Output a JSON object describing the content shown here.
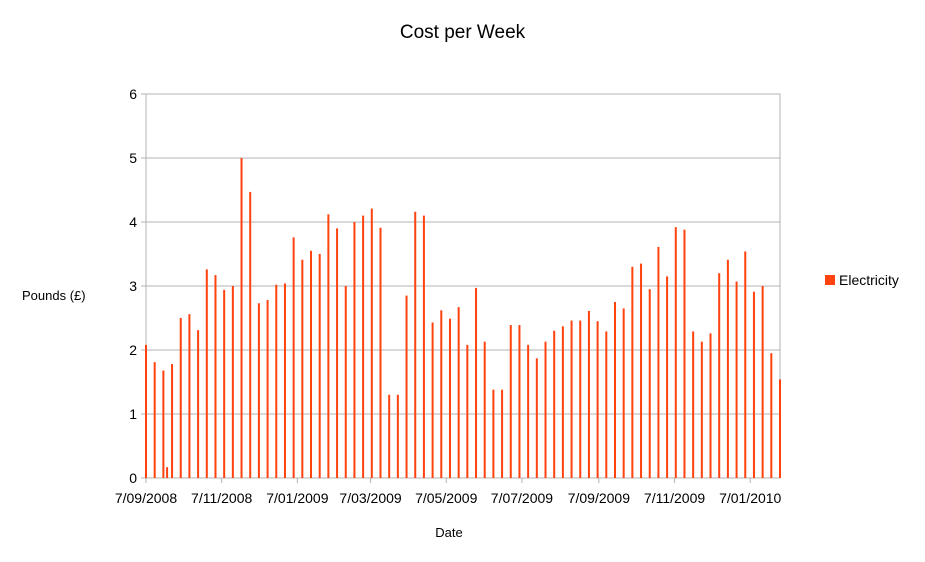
{
  "chart_data": {
    "type": "bar",
    "title": "Cost per Week",
    "xlabel": "Date",
    "ylabel": "Pounds (£)",
    "ylim": [
      0,
      6
    ],
    "yticks": [
      "0",
      "1",
      "2",
      "3",
      "4",
      "5",
      "6"
    ],
    "grid": true,
    "legend_position": "right",
    "color": "#ff420e",
    "series": [
      {
        "name": "Electricity",
        "x": [
          "2008-09-07",
          "2008-09-14",
          "2008-09-21",
          "2008-09-24",
          "2008-09-28",
          "2008-10-05",
          "2008-10-12",
          "2008-10-19",
          "2008-10-26",
          "2008-11-02",
          "2008-11-09",
          "2008-11-16",
          "2008-11-23",
          "2008-11-30",
          "2008-12-07",
          "2008-12-14",
          "2008-12-21",
          "2008-12-28",
          "2009-01-04",
          "2009-01-11",
          "2009-01-18",
          "2009-01-25",
          "2009-02-01",
          "2009-02-08",
          "2009-02-15",
          "2009-02-22",
          "2009-03-01",
          "2009-03-08",
          "2009-03-15",
          "2009-03-22",
          "2009-03-29",
          "2009-04-05",
          "2009-04-12",
          "2009-04-19",
          "2009-04-26",
          "2009-05-03",
          "2009-05-10",
          "2009-05-17",
          "2009-05-24",
          "2009-05-31",
          "2009-06-07",
          "2009-06-14",
          "2009-06-21",
          "2009-06-28",
          "2009-07-05",
          "2009-07-12",
          "2009-07-19",
          "2009-07-26",
          "2009-08-02",
          "2009-08-09",
          "2009-08-16",
          "2009-08-23",
          "2009-08-30",
          "2009-09-06",
          "2009-09-13",
          "2009-09-20",
          "2009-09-27",
          "2009-10-04",
          "2009-10-11",
          "2009-10-18",
          "2009-10-25",
          "2009-11-01",
          "2009-11-08",
          "2009-11-15",
          "2009-11-22",
          "2009-11-29",
          "2009-12-06",
          "2009-12-13",
          "2009-12-20",
          "2009-12-27",
          "2010-01-03",
          "2010-01-10",
          "2010-01-17",
          "2010-01-24",
          "2010-01-31"
        ],
        "values": [
          2.08,
          1.81,
          1.68,
          0.17,
          1.78,
          2.5,
          2.56,
          2.31,
          3.26,
          3.17,
          2.94,
          3.0,
          5.0,
          4.47,
          2.73,
          2.78,
          3.02,
          3.04,
          3.76,
          3.41,
          3.55,
          3.5,
          4.12,
          3.9,
          3.0,
          4.0,
          4.1,
          4.21,
          3.91,
          1.3,
          1.3,
          2.85,
          4.16,
          4.1,
          2.43,
          2.62,
          2.49,
          2.67,
          2.08,
          2.97,
          2.13,
          1.38,
          1.38,
          2.39,
          2.39,
          2.08,
          1.87,
          2.13,
          2.3,
          2.37,
          2.46,
          2.46,
          2.61,
          2.45,
          2.29,
          2.75,
          2.65,
          3.3,
          3.35,
          2.95,
          3.61,
          3.15,
          3.92,
          3.88,
          2.29,
          2.13,
          2.26,
          3.2,
          3.41,
          3.07,
          3.54,
          2.91,
          3.0,
          1.95,
          1.54
        ]
      }
    ],
    "x_tick_labels": [
      {
        "label": "7/09/2008",
        "date": "2008-09-07"
      },
      {
        "label": "7/11/2008",
        "date": "2008-11-07"
      },
      {
        "label": "7/01/2009",
        "date": "2009-01-07"
      },
      {
        "label": "7/03/2009",
        "date": "2009-03-07"
      },
      {
        "label": "7/05/2009",
        "date": "2009-05-07"
      },
      {
        "label": "7/07/2009",
        "date": "2009-07-07"
      },
      {
        "label": "7/09/2009",
        "date": "2009-09-07"
      },
      {
        "label": "7/11/2009",
        "date": "2009-11-07"
      },
      {
        "label": "7/01/2010",
        "date": "2010-01-07"
      }
    ],
    "x_range": [
      "2008-09-07",
      "2010-01-31"
    ]
  }
}
